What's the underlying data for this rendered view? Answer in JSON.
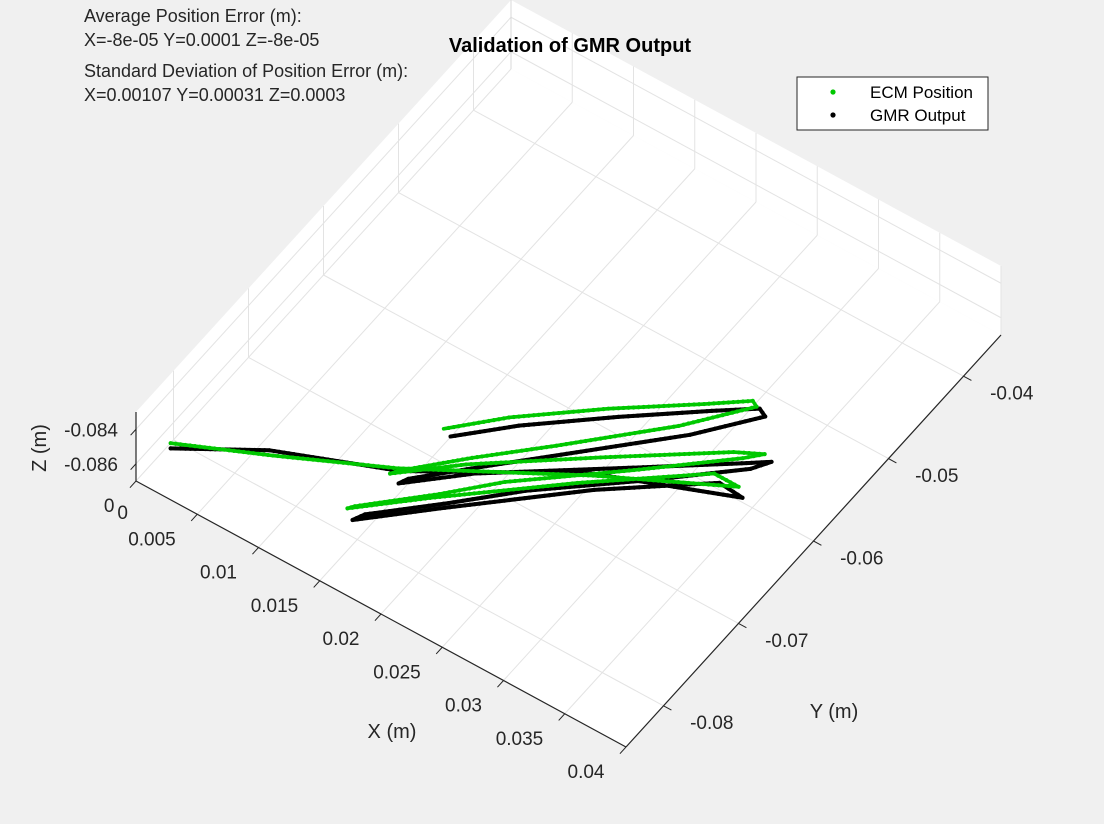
{
  "chart_data": {
    "type": "line3d",
    "title": "Validation of GMR Output",
    "annotations": [
      "Average Position Error (m):",
      "X=-8e-05 Y=0.0001 Z=-8e-05",
      "Standard Deviation of Position Error (m):",
      "X=0.00107 Y=0.00031 Z=0.0003"
    ],
    "xlabel": "X (m)",
    "ylabel": "Y (m)",
    "zlabel": "Z (m)",
    "xlim": [
      0,
      0.04
    ],
    "ylim": [
      -0.085,
      -0.035
    ],
    "zlim": [
      -0.087,
      -0.083
    ],
    "xticks": [
      "0",
      "0.005",
      "0.01",
      "0.015",
      "0.02",
      "0.025",
      "0.03",
      "0.035",
      "0.04"
    ],
    "yticks": [
      "-0.08",
      "-0.07",
      "-0.06",
      "-0.05",
      "-0.04"
    ],
    "zticks": [
      "-0.084",
      "-0.086"
    ],
    "grid": true,
    "legend_position": "top-right",
    "series": [
      {
        "name": "ECM Position",
        "color": "#00c800",
        "marker": "dot",
        "points": [
          [
            0.0013,
            -0.0825,
            -0.0855
          ],
          [
            0.0075,
            -0.079,
            -0.0855
          ],
          [
            0.015,
            -0.0745,
            -0.0855
          ],
          [
            0.026,
            -0.0665,
            -0.0855
          ],
          [
            0.0345,
            -0.061,
            -0.0855
          ],
          [
            0.0325,
            -0.061,
            -0.0855
          ],
          [
            0.0255,
            -0.0678,
            -0.0855
          ],
          [
            0.0182,
            -0.0755,
            -0.0855
          ],
          [
            0.0142,
            -0.08,
            -0.0855
          ],
          [
            0.0145,
            -0.0795,
            -0.0855
          ],
          [
            0.0185,
            -0.0748,
            -0.0855
          ],
          [
            0.0215,
            -0.0709,
            -0.0855
          ],
          [
            0.0282,
            -0.064,
            -0.0855
          ],
          [
            0.0333,
            -0.0585,
            -0.0855
          ],
          [
            0.0343,
            -0.0572,
            -0.0855
          ],
          [
            0.0325,
            -0.0584,
            -0.0855
          ],
          [
            0.0255,
            -0.0647,
            -0.0855
          ],
          [
            0.0185,
            -0.0712,
            -0.0855
          ],
          [
            0.0148,
            -0.0753,
            -0.0855
          ],
          [
            0.0152,
            -0.0746,
            -0.0855
          ],
          [
            0.0185,
            -0.0704,
            -0.0855
          ],
          [
            0.0225,
            -0.0657,
            -0.0855
          ],
          [
            0.0282,
            -0.0587,
            -0.0855
          ],
          [
            0.0315,
            -0.0537,
            -0.0855
          ],
          [
            0.031,
            -0.0534,
            -0.0855
          ],
          [
            0.0285,
            -0.0558,
            -0.0855
          ],
          [
            0.0235,
            -0.0604,
            -0.0855
          ],
          [
            0.0185,
            -0.0655,
            -0.0855
          ],
          [
            0.0155,
            -0.0693,
            -0.0855
          ]
        ]
      },
      {
        "name": "GMR Output",
        "color": "#000000",
        "marker": "dot",
        "points": [
          [
            0.0013,
            -0.0825,
            -0.0858
          ],
          [
            0.0068,
            -0.0783,
            -0.0858
          ],
          [
            0.015,
            -0.0742,
            -0.0858
          ],
          [
            0.0255,
            -0.066,
            -0.0858
          ],
          [
            0.035,
            -0.0613,
            -0.0858
          ],
          [
            0.033,
            -0.0611,
            -0.0858
          ],
          [
            0.0265,
            -0.0672,
            -0.0858
          ],
          [
            0.019,
            -0.0755,
            -0.0858
          ],
          [
            0.0148,
            -0.0803,
            -0.0858
          ],
          [
            0.0152,
            -0.0793,
            -0.0858
          ],
          [
            0.0192,
            -0.0747,
            -0.0858
          ],
          [
            0.0228,
            -0.0703,
            -0.0858
          ],
          [
            0.0292,
            -0.0638,
            -0.0858
          ],
          [
            0.034,
            -0.0586,
            -0.0858
          ],
          [
            0.0348,
            -0.0571,
            -0.0858
          ],
          [
            0.0335,
            -0.0583,
            -0.0858
          ],
          [
            0.0265,
            -0.0646,
            -0.0858
          ],
          [
            0.0192,
            -0.0711,
            -0.0858
          ],
          [
            0.0155,
            -0.0753,
            -0.0858
          ],
          [
            0.0158,
            -0.0745,
            -0.0858
          ],
          [
            0.0192,
            -0.0703,
            -0.0858
          ],
          [
            0.0232,
            -0.0655,
            -0.0858
          ],
          [
            0.029,
            -0.0585,
            -0.0858
          ],
          [
            0.0322,
            -0.0537,
            -0.0858
          ],
          [
            0.0315,
            -0.0533,
            -0.0858
          ],
          [
            0.029,
            -0.0556,
            -0.0858
          ],
          [
            0.0242,
            -0.0602,
            -0.0858
          ],
          [
            0.0192,
            -0.0653,
            -0.0858
          ],
          [
            0.016,
            -0.0692,
            -0.0858
          ]
        ]
      }
    ]
  }
}
